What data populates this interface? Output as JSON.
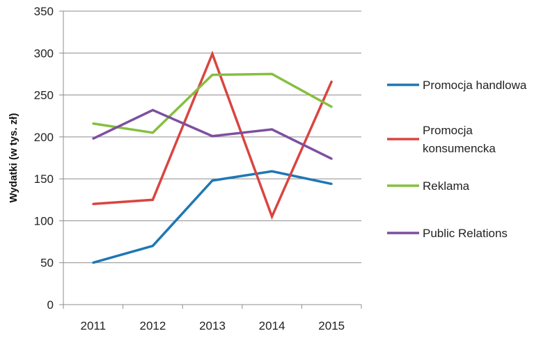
{
  "chart_data": {
    "type": "line",
    "title": "",
    "xlabel": "",
    "ylabel": "Wydatki (w tys. zł)",
    "categories": [
      "2011",
      "2012",
      "2013",
      "2014",
      "2015"
    ],
    "ylim": [
      0,
      350
    ],
    "yticks": [
      0,
      50,
      100,
      150,
      200,
      250,
      300,
      350
    ],
    "grid": "horizontal",
    "legend_position": "right",
    "series": [
      {
        "name": "Promocja handlowa",
        "name_lines": [
          "Promocja handlowa"
        ],
        "color": "#1f77b4",
        "values": [
          50,
          70,
          148,
          159,
          144
        ]
      },
      {
        "name": "Promocja konsumencka",
        "name_lines": [
          "Promocja",
          "konsumencka"
        ],
        "color": "#d9453f",
        "values": [
          120,
          125,
          299,
          105,
          266
        ]
      },
      {
        "name": "Reklama",
        "name_lines": [
          "Reklama"
        ],
        "color": "#86bf3f",
        "values": [
          216,
          205,
          274,
          275,
          236
        ]
      },
      {
        "name": "Public Relations",
        "name_lines": [
          "Public Relations"
        ],
        "color": "#7d4f9f",
        "values": [
          198,
          232,
          201,
          209,
          174
        ]
      }
    ]
  }
}
